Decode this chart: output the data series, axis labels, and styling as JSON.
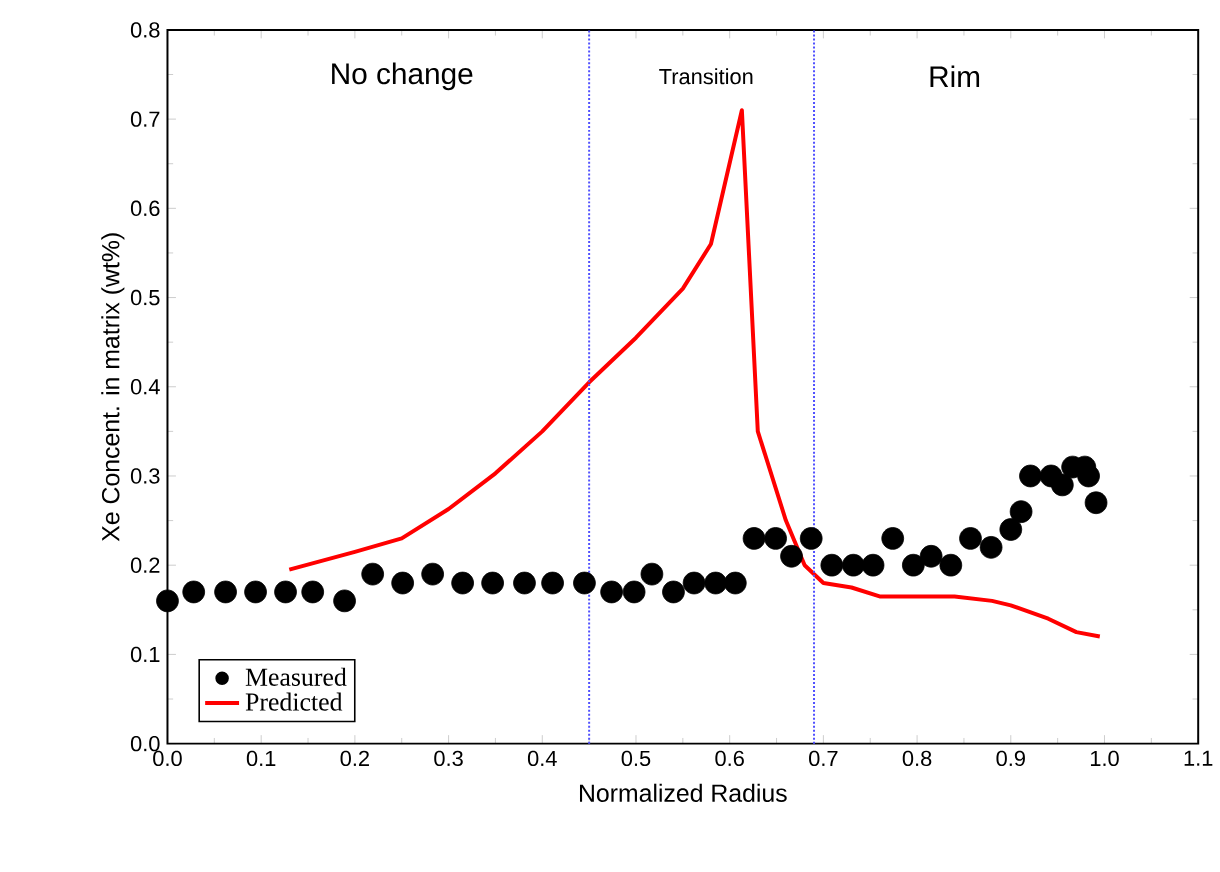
{
  "chart_data": {
    "type": "scatter",
    "xlabel": "Normalized Radius",
    "ylabel": "Xe Concent. in matrix (wt%)",
    "xlim": [
      0,
      1.1
    ],
    "xticks": [
      {
        "value": 0,
        "label": "0.0"
      },
      0.1,
      0.2,
      0.3,
      0.4,
      0.5,
      0.6,
      0.7,
      0.8,
      0.9,
      {
        "value": 1,
        "label": "1.0"
      },
      1.1
    ],
    "ylim": [
      0,
      0.8
    ],
    "yticks": [
      {
        "value": 0,
        "label": "0.0"
      },
      0.1,
      0.2,
      0.3,
      0.4,
      0.5,
      0.6,
      0.7,
      0.8
    ],
    "legend": "bottom left",
    "series": [
      {
        "name": "Measured",
        "marker": "circle",
        "color": "#000000",
        "x": [
          0.0,
          0.028,
          0.062,
          0.094,
          0.126,
          0.155,
          0.189,
          0.219,
          0.251,
          0.283,
          0.315,
          0.347,
          0.381,
          0.411,
          0.445,
          0.474,
          0.498,
          0.517,
          0.54,
          0.562,
          0.585,
          0.606,
          0.626,
          0.649,
          0.666,
          0.687,
          0.709,
          0.732,
          0.753,
          0.774,
          0.796,
          0.815,
          0.836,
          0.857,
          0.879,
          0.9,
          0.911,
          0.921,
          0.943,
          0.955,
          0.966,
          0.979,
          0.983,
          0.991
        ],
        "values": [
          0.16,
          0.17,
          0.17,
          0.17,
          0.17,
          0.17,
          0.16,
          0.19,
          0.18,
          0.19,
          0.18,
          0.18,
          0.18,
          0.18,
          0.18,
          0.17,
          0.17,
          0.19,
          0.17,
          0.18,
          0.18,
          0.18,
          0.23,
          0.23,
          0.21,
          0.23,
          0.2,
          0.2,
          0.2,
          0.23,
          0.2,
          0.21,
          0.2,
          0.23,
          0.22,
          0.24,
          0.26,
          0.3,
          0.3,
          0.29,
          0.31,
          0.31,
          0.3,
          0.27
        ]
      },
      {
        "name": "Predicted",
        "type": "line",
        "marker": "none",
        "line_style": "solid",
        "color": "#ff0000",
        "x": [
          0.13,
          0.2,
          0.25,
          0.3,
          0.35,
          0.4,
          0.45,
          0.5,
          0.55,
          0.58,
          0.613,
          0.63,
          0.66,
          0.68,
          0.7,
          0.73,
          0.76,
          0.8,
          0.84,
          0.88,
          0.9,
          0.94,
          0.97,
          0.995
        ],
        "values": [
          0.195,
          0.215,
          0.23,
          0.263,
          0.303,
          0.35,
          0.405,
          0.455,
          0.51,
          0.56,
          0.71,
          0.35,
          0.25,
          0.2,
          0.18,
          0.175,
          0.165,
          0.165,
          0.165,
          0.16,
          0.155,
          0.14,
          0.125,
          0.12
        ]
      }
    ],
    "ref_lines": [
      {
        "axis": "x",
        "value": 0.45,
        "color": "#5050ff",
        "line_style": "dotted"
      },
      {
        "axis": "x",
        "value": 0.69,
        "color": "#5050ff",
        "line_style": "dotted"
      }
    ],
    "annotations": [
      "No change",
      "Transition",
      "Rim"
    ]
  }
}
